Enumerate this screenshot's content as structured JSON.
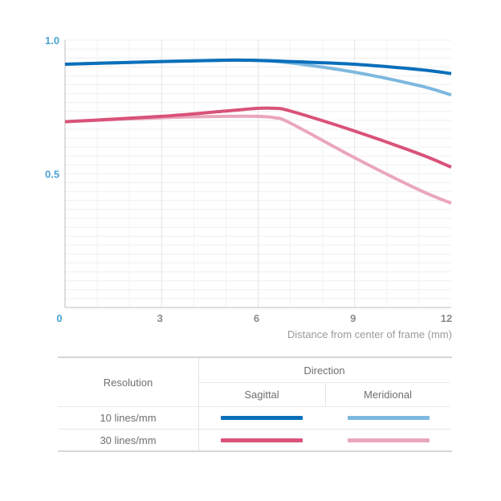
{
  "chart_data": {
    "type": "line",
    "xlabel": "Distance from center of frame (mm)",
    "ylabel": "",
    "xlim": [
      0,
      12
    ],
    "ylim": [
      0,
      1.0
    ],
    "xticks": [
      0,
      3,
      6,
      9,
      12
    ],
    "xtick_labels": [
      "0",
      "3",
      "6",
      "9",
      "12"
    ],
    "yticks": [
      0.5,
      1.0
    ],
    "ytick_labels": [
      "0.5",
      "1.0"
    ],
    "series": [
      {
        "name": "10 lines/mm Sagittal",
        "color": "#0a6fba",
        "x": [
          0,
          3,
          5,
          6,
          7,
          9,
          11,
          12
        ],
        "y": [
          0.91,
          0.92,
          0.925,
          0.924,
          0.92,
          0.91,
          0.89,
          0.875
        ]
      },
      {
        "name": "10 lines/mm Meridional",
        "color": "#7db8df",
        "x": [
          0,
          3,
          5,
          6,
          7,
          9,
          11,
          12
        ],
        "y": [
          0.91,
          0.92,
          0.925,
          0.924,
          0.915,
          0.88,
          0.83,
          0.795
        ]
      },
      {
        "name": "30 lines/mm Sagittal",
        "color": "#d9527a",
        "x": [
          0,
          3,
          5,
          6,
          6.5,
          7,
          9,
          11,
          12
        ],
        "y": [
          0.695,
          0.715,
          0.735,
          0.745,
          0.745,
          0.735,
          0.66,
          0.575,
          0.525
        ]
      },
      {
        "name": "30 lines/mm Meridional",
        "color": "#eaa7bc",
        "x": [
          0,
          3,
          5,
          6,
          6.5,
          7,
          9,
          11,
          12
        ],
        "y": [
          0.695,
          0.71,
          0.715,
          0.715,
          0.71,
          0.69,
          0.56,
          0.44,
          0.39
        ]
      }
    ]
  },
  "legend_table": {
    "resolution_header": "Resolution",
    "direction_header": "Direction",
    "sagittal_label": "Sagittal",
    "meridional_label": "Meridional",
    "row1_label": "10 lines/mm",
    "row2_label": "30 lines/mm"
  },
  "colors": {
    "s10": "#0a6fba",
    "m10": "#7db8df",
    "s30": "#d9527a",
    "m30": "#eaa7bc"
  }
}
